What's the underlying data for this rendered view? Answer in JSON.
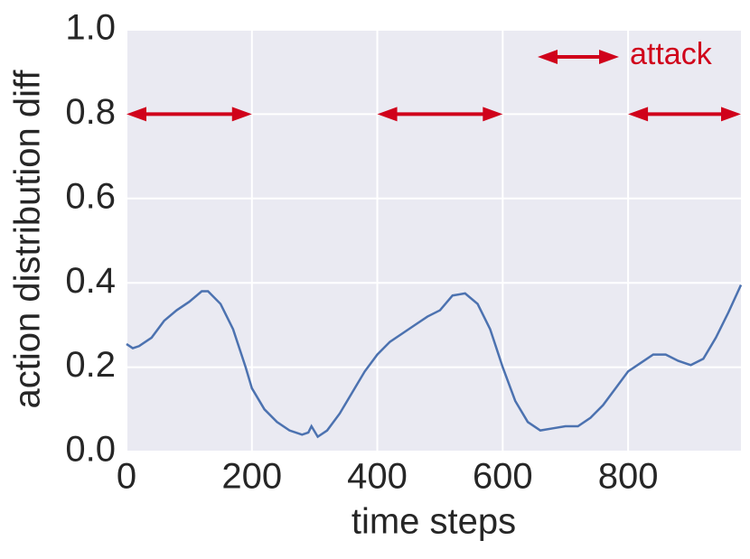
{
  "chart_data": {
    "type": "line",
    "xlabel": "time steps",
    "ylabel": "action distribution diff",
    "x": [
      0,
      10,
      20,
      40,
      60,
      80,
      100,
      120,
      130,
      150,
      170,
      190,
      200,
      220,
      240,
      260,
      280,
      290,
      295,
      305,
      320,
      340,
      360,
      380,
      400,
      420,
      440,
      460,
      480,
      500,
      520,
      540,
      560,
      580,
      600,
      620,
      640,
      660,
      680,
      700,
      720,
      740,
      760,
      780,
      800,
      820,
      840,
      860,
      880,
      900,
      920,
      940,
      960,
      980
    ],
    "series": [
      {
        "color": "#4c72b0",
        "values": [
          0.255,
          0.245,
          0.25,
          0.27,
          0.31,
          0.335,
          0.355,
          0.38,
          0.38,
          0.35,
          0.29,
          0.2,
          0.15,
          0.1,
          0.07,
          0.05,
          0.04,
          0.045,
          0.06,
          0.035,
          0.05,
          0.09,
          0.14,
          0.19,
          0.23,
          0.26,
          0.28,
          0.3,
          0.32,
          0.335,
          0.37,
          0.375,
          0.35,
          0.29,
          0.2,
          0.12,
          0.07,
          0.05,
          0.055,
          0.06,
          0.06,
          0.08,
          0.11,
          0.15,
          0.19,
          0.21,
          0.23,
          0.23,
          0.215,
          0.205,
          0.22,
          0.27,
          0.33,
          0.395
        ]
      },
      {
        "name": "attack",
        "color": "#d0021b",
        "y": 0.8,
        "intervals": [
          [
            0,
            200
          ],
          [
            400,
            600
          ],
          [
            800,
            980
          ]
        ]
      }
    ],
    "xlim": [
      0,
      980
    ],
    "ylim": [
      0,
      1
    ],
    "xticks": [
      0,
      200,
      400,
      600,
      800
    ],
    "yticks": [
      {
        "value": 0,
        "label": "0.0"
      },
      0.2,
      0.4,
      0.6,
      0.8,
      {
        "value": 1,
        "label": "1.0"
      }
    ],
    "grid": true,
    "background": "#eaeaf2",
    "legend": "upper right"
  }
}
